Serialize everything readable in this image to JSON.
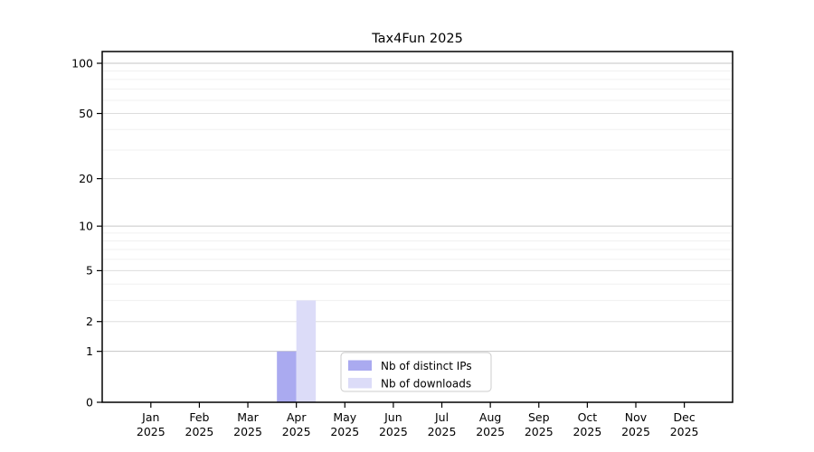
{
  "chart_data": {
    "type": "bar",
    "title": "Tax4Fun 2025",
    "categories": [
      "Jan",
      "Feb",
      "Mar",
      "Apr",
      "May",
      "Jun",
      "Jul",
      "Aug",
      "Sep",
      "Oct",
      "Nov",
      "Dec"
    ],
    "year_label": "2025",
    "series": [
      {
        "name": "Nb of distinct IPs",
        "color": "#aaaaf0",
        "values": [
          0,
          0,
          0,
          1,
          0,
          0,
          0,
          0,
          0,
          0,
          0,
          0
        ]
      },
      {
        "name": "Nb of downloads",
        "color": "#dcdcf8",
        "values": [
          0,
          0,
          0,
          3,
          0,
          0,
          0,
          0,
          0,
          0,
          0,
          0
        ]
      }
    ],
    "y_axis": {
      "scale": "log10(value+1)",
      "ticks": [
        0,
        1,
        2,
        5,
        10,
        20,
        50,
        100
      ],
      "range": [
        0,
        116
      ]
    },
    "xlabel": "",
    "ylabel": "",
    "grid": true,
    "legend": {
      "position": "inside-bottom-center",
      "entries": [
        "Nb of distinct IPs",
        "Nb of downloads"
      ]
    }
  }
}
